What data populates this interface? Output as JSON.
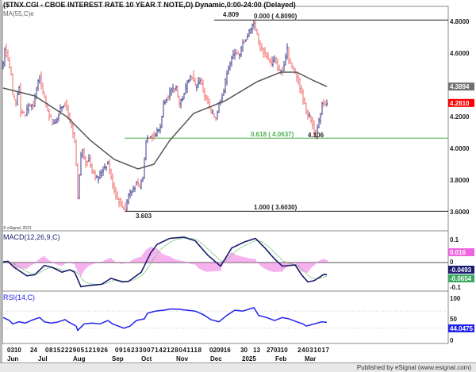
{
  "header": {
    "title": "($TNX.CGI - CBOE INTEREST RATE 10 YEAR T NOTE,D) Dynamic,0:00-24:00 (Delayed)",
    "ma_label": "MA(55,C)e"
  },
  "footer": {
    "text": "Published by eSignal (www.esignal.com)"
  },
  "copyright": "© eSignal, 2021",
  "colors": {
    "up": "#3a3a8a",
    "down": "#f26a6a",
    "ma": "#555555",
    "fib618": "#6cbf6c",
    "macd": "#1a1a6e",
    "signal": "#6cbf6c",
    "hist": "#ee66dd",
    "rsi": "#2222ee",
    "last_price_bg": "#ff0000",
    "ma_bg": "#707070"
  },
  "chart_data": [
    {
      "type": "ohlc",
      "name": "price",
      "ylim": [
        3.6,
        4.8
      ],
      "yticks": [
        "4.8000",
        "4.6000",
        "4.2000",
        "4.0000",
        "3.8000",
        "3.6000"
      ],
      "ytick_values": [
        4.8,
        4.6,
        4.2,
        4.0,
        3.8,
        3.6
      ],
      "n_bars": 205,
      "close_keypoints": [
        [
          0,
          4.535
        ],
        [
          1,
          4.635
        ],
        [
          3,
          4.56
        ],
        [
          5,
          4.46
        ],
        [
          6,
          4.335
        ],
        [
          8,
          4.285
        ],
        [
          10,
          4.395
        ],
        [
          11,
          4.235
        ],
        [
          14,
          4.21
        ],
        [
          16,
          4.275
        ],
        [
          19,
          4.26
        ],
        [
          21,
          4.385
        ],
        [
          23,
          4.46
        ],
        [
          24,
          4.41
        ],
        [
          26,
          4.31
        ],
        [
          29,
          4.21
        ],
        [
          31,
          4.16
        ],
        [
          34,
          4.185
        ],
        [
          36,
          4.26
        ],
        [
          39,
          4.285
        ],
        [
          41,
          4.21
        ],
        [
          43,
          4.135
        ],
        [
          45,
          4.035
        ],
        [
          46,
          3.885
        ],
        [
          47,
          3.685
        ],
        [
          49,
          3.96
        ],
        [
          50,
          3.985
        ],
        [
          52,
          3.91
        ],
        [
          54,
          3.935
        ],
        [
          56,
          3.86
        ],
        [
          59,
          3.81
        ],
        [
          61,
          3.835
        ],
        [
          64,
          3.885
        ],
        [
          66,
          3.91
        ],
        [
          68,
          3.81
        ],
        [
          70,
          3.735
        ],
        [
          72,
          3.685
        ],
        [
          75,
          3.635
        ],
        [
          77,
          3.62
        ],
        [
          79,
          3.71
        ],
        [
          81,
          3.735
        ],
        [
          84,
          3.775
        ],
        [
          86,
          3.76
        ],
        [
          88,
          3.81
        ],
        [
          90,
          4.06
        ],
        [
          93,
          4.085
        ],
        [
          95,
          4.075
        ],
        [
          99,
          4.135
        ],
        [
          101,
          4.285
        ],
        [
          104,
          4.335
        ],
        [
          106,
          4.36
        ],
        [
          109,
          4.385
        ],
        [
          111,
          4.285
        ],
        [
          114,
          4.335
        ],
        [
          116,
          4.435
        ],
        [
          119,
          4.46
        ],
        [
          121,
          4.385
        ],
        [
          124,
          4.435
        ],
        [
          126,
          4.36
        ],
        [
          129,
          4.285
        ],
        [
          131,
          4.235
        ],
        [
          134,
          4.185
        ],
        [
          136,
          4.285
        ],
        [
          139,
          4.36
        ],
        [
          141,
          4.485
        ],
        [
          144,
          4.56
        ],
        [
          146,
          4.61
        ],
        [
          149,
          4.585
        ],
        [
          151,
          4.66
        ],
        [
          154,
          4.71
        ],
        [
          156,
          4.76
        ],
        [
          158,
          4.795
        ],
        [
          160,
          4.71
        ],
        [
          162,
          4.635
        ],
        [
          164,
          4.61
        ],
        [
          166,
          4.585
        ],
        [
          169,
          4.535
        ],
        [
          171,
          4.56
        ],
        [
          174,
          4.485
        ],
        [
          176,
          4.485
        ],
        [
          179,
          4.635
        ],
        [
          180,
          4.56
        ],
        [
          182,
          4.51
        ],
        [
          185,
          4.46
        ],
        [
          187,
          4.385
        ],
        [
          189,
          4.31
        ],
        [
          191,
          4.235
        ],
        [
          194,
          4.185
        ],
        [
          196,
          4.11
        ],
        [
          197,
          4.08
        ],
        [
          200,
          4.21
        ],
        [
          201,
          4.285
        ],
        [
          204,
          4.281
        ]
      ],
      "ma55_keypoints": [
        [
          0,
          4.38
        ],
        [
          20,
          4.33
        ],
        [
          40,
          4.2
        ],
        [
          55,
          4.05
        ],
        [
          70,
          3.93
        ],
        [
          85,
          3.87
        ],
        [
          95,
          3.9
        ],
        [
          105,
          4.05
        ],
        [
          120,
          4.22
        ],
        [
          140,
          4.3
        ],
        [
          160,
          4.42
        ],
        [
          175,
          4.48
        ],
        [
          185,
          4.48
        ],
        [
          195,
          4.43
        ],
        [
          204,
          4.3894
        ]
      ],
      "last_price": "4.2810",
      "last_price_value": 4.281,
      "ma_last": "4.3894",
      "ma_last_value": 4.3894,
      "annotations": {
        "high_label": "4.809",
        "low_label": "3.603",
        "low2_label": "4.106",
        "fib_0": "0.000 ( 4.8090)",
        "fib_618": "0.618 ( 4.0637)",
        "fib_1": "1.000 ( 3.6030)"
      },
      "fib_levels": [
        4.809,
        4.0637,
        3.603
      ]
    },
    {
      "type": "line",
      "name": "MACD(12,26,9,C)",
      "label": "MACD(12,26,9,C)",
      "ylim": [
        -0.1,
        0.1
      ],
      "yticks": [
        "0.1",
        "0",
        "-0.1"
      ],
      "ytick_values": [
        0.1,
        0,
        -0.1
      ],
      "macd_keypoints": [
        [
          0,
          0.003
        ],
        [
          3,
          0.005
        ],
        [
          7,
          -0.02
        ],
        [
          15,
          -0.055
        ],
        [
          20,
          -0.05
        ],
        [
          26,
          -0.012
        ],
        [
          31,
          -0.02
        ],
        [
          37,
          -0.04
        ],
        [
          42,
          -0.03
        ],
        [
          45,
          -0.04
        ],
        [
          49,
          -0.1
        ],
        [
          54,
          -0.095
        ],
        [
          62,
          -0.09
        ],
        [
          68,
          -0.065
        ],
        [
          75,
          -0.08
        ],
        [
          79,
          -0.078
        ],
        [
          87,
          -0.04
        ],
        [
          93,
          0.04
        ],
        [
          97,
          0.075
        ],
        [
          105,
          0.1
        ],
        [
          114,
          0.105
        ],
        [
          121,
          0.09
        ],
        [
          129,
          0.03
        ],
        [
          137,
          -0.015
        ],
        [
          144,
          0.06
        ],
        [
          152,
          0.085
        ],
        [
          159,
          0.1
        ],
        [
          165,
          0.06
        ],
        [
          171,
          0.015
        ],
        [
          176,
          -0.015
        ],
        [
          184,
          -0.01
        ],
        [
          188,
          -0.05
        ],
        [
          192,
          -0.08
        ],
        [
          196,
          -0.075
        ],
        [
          202,
          -0.0493
        ]
      ],
      "hist_last": "0.016",
      "macd_last": "-0.0493",
      "signal_last": "-0.0654"
    },
    {
      "type": "line",
      "name": "RSI(14,C)",
      "label": "RSI(14,C)",
      "ylim": [
        0,
        100
      ],
      "yticks": [
        "100",
        "50",
        "0"
      ],
      "ytick_values": [
        100,
        50,
        0
      ],
      "rsi_keypoints": [
        [
          0,
          55
        ],
        [
          4,
          48
        ],
        [
          6,
          40
        ],
        [
          10,
          45
        ],
        [
          14,
          42
        ],
        [
          19,
          50
        ],
        [
          23,
          55
        ],
        [
          26,
          45
        ],
        [
          30,
          42
        ],
        [
          34,
          44
        ],
        [
          39,
          50
        ],
        [
          41,
          45
        ],
        [
          46,
          35
        ],
        [
          47,
          25
        ],
        [
          51,
          40
        ],
        [
          56,
          42
        ],
        [
          61,
          40
        ],
        [
          66,
          48
        ],
        [
          69,
          40
        ],
        [
          74,
          33
        ],
        [
          76,
          30
        ],
        [
          80,
          35
        ],
        [
          84,
          48
        ],
        [
          89,
          52
        ],
        [
          91,
          65
        ],
        [
          96,
          70
        ],
        [
          101,
          72
        ],
        [
          106,
          75
        ],
        [
          111,
          74
        ],
        [
          116,
          72
        ],
        [
          121,
          70
        ],
        [
          126,
          62
        ],
        [
          131,
          50
        ],
        [
          136,
          45
        ],
        [
          141,
          60
        ],
        [
          146,
          72
        ],
        [
          151,
          70
        ],
        [
          158,
          78
        ],
        [
          161,
          60
        ],
        [
          166,
          55
        ],
        [
          171,
          48
        ],
        [
          176,
          55
        ],
        [
          180,
          52
        ],
        [
          185,
          45
        ],
        [
          189,
          40
        ],
        [
          191,
          35
        ],
        [
          196,
          40
        ],
        [
          201,
          45
        ],
        [
          203,
          44.0475
        ]
      ],
      "last": "44.0475"
    }
  ],
  "xaxis": {
    "day_groups": [
      "0310",
      "24",
      "0815222905121926",
      "0916233007142128041118",
      "020916",
      "30",
      "13",
      "270310",
      "24031017"
    ],
    "months": [
      "Jun",
      "Jul",
      "Aug",
      "Sep",
      "Oct",
      "Nov",
      "Dec",
      "2025",
      "Feb",
      "Mar"
    ]
  }
}
